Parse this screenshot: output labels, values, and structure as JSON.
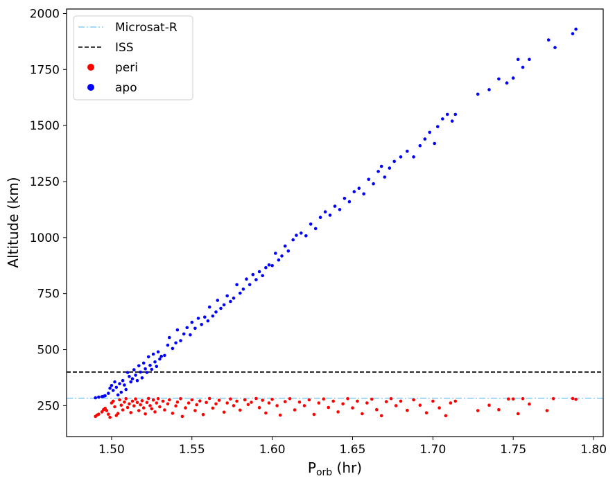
{
  "chart_data": {
    "type": "scatter",
    "title": "",
    "xlabel_main": "P",
    "xlabel_sub": "orb",
    "xlabel_unit": " (hr)",
    "ylabel": "Altitude (km)",
    "xlim": [
      1.472,
      1.806
    ],
    "ylim": [
      112,
      2020
    ],
    "xticks": [
      1.5,
      1.55,
      1.6,
      1.65,
      1.7,
      1.75,
      1.8
    ],
    "xtick_labels": [
      "1.50",
      "1.55",
      "1.60",
      "1.65",
      "1.70",
      "1.75",
      "1.80"
    ],
    "yticks": [
      250,
      500,
      750,
      1000,
      1250,
      1500,
      1750,
      2000
    ],
    "ytick_labels": [
      "250",
      "500",
      "750",
      "1000",
      "1250",
      "1500",
      "1750",
      "2000"
    ],
    "grid": false,
    "legend_position": "top-left",
    "lines": [
      {
        "name": "Microsat-R",
        "y": 283,
        "color": "#87cefa",
        "style": "dash-dot"
      },
      {
        "name": "ISS",
        "y": 400,
        "color": "#000000",
        "style": "dashed"
      }
    ],
    "series": [
      {
        "name": "peri",
        "color": "#ff0000",
        "points": [
          [
            1.49,
            202
          ],
          [
            1.491,
            208
          ],
          [
            1.492,
            212
          ],
          [
            1.494,
            222
          ],
          [
            1.495,
            232
          ],
          [
            1.496,
            238
          ],
          [
            1.497,
            228
          ],
          [
            1.498,
            212
          ],
          [
            1.499,
            198
          ],
          [
            1.5,
            262
          ],
          [
            1.501,
            270
          ],
          [
            1.502,
            245
          ],
          [
            1.503,
            206
          ],
          [
            1.504,
            215
          ],
          [
            1.505,
            276
          ],
          [
            1.506,
            252
          ],
          [
            1.507,
            231
          ],
          [
            1.508,
            266
          ],
          [
            1.509,
            281
          ],
          [
            1.51,
            242
          ],
          [
            1.511,
            258
          ],
          [
            1.512,
            219
          ],
          [
            1.513,
            270
          ],
          [
            1.514,
            249
          ],
          [
            1.515,
            280
          ],
          [
            1.516,
            264
          ],
          [
            1.517,
            228
          ],
          [
            1.518,
            254
          ],
          [
            1.519,
            272
          ],
          [
            1.52,
            240
          ],
          [
            1.521,
            213
          ],
          [
            1.522,
            264
          ],
          [
            1.523,
            282
          ],
          [
            1.524,
            250
          ],
          [
            1.525,
            236
          ],
          [
            1.526,
            275
          ],
          [
            1.527,
            222
          ],
          [
            1.528,
            262
          ],
          [
            1.529,
            281
          ],
          [
            1.53,
            245
          ],
          [
            1.532,
            270
          ],
          [
            1.533,
            231
          ],
          [
            1.535,
            258
          ],
          [
            1.536,
            276
          ],
          [
            1.538,
            216
          ],
          [
            1.54,
            249
          ],
          [
            1.541,
            266
          ],
          [
            1.543,
            281
          ],
          [
            1.544,
            202
          ],
          [
            1.546,
            240
          ],
          [
            1.548,
            262
          ],
          [
            1.55,
            276
          ],
          [
            1.552,
            228
          ],
          [
            1.553,
            254
          ],
          [
            1.555,
            271
          ],
          [
            1.557,
            210
          ],
          [
            1.559,
            264
          ],
          [
            1.561,
            282
          ],
          [
            1.563,
            239
          ],
          [
            1.565,
            258
          ],
          [
            1.567,
            274
          ],
          [
            1.57,
            221
          ],
          [
            1.572,
            262
          ],
          [
            1.574,
            280
          ],
          [
            1.576,
            250
          ],
          [
            1.578,
            270
          ],
          [
            1.58,
            230
          ],
          [
            1.583,
            276
          ],
          [
            1.585,
            255
          ],
          [
            1.587,
            265
          ],
          [
            1.59,
            282
          ],
          [
            1.592,
            241
          ],
          [
            1.594,
            274
          ],
          [
            1.596,
            217
          ],
          [
            1.598,
            262
          ],
          [
            1.6,
            278
          ],
          [
            1.603,
            250
          ],
          [
            1.605,
            208
          ],
          [
            1.608,
            268
          ],
          [
            1.611,
            281
          ],
          [
            1.614,
            231
          ],
          [
            1.617,
            266
          ],
          [
            1.62,
            250
          ],
          [
            1.623,
            276
          ],
          [
            1.626,
            211
          ],
          [
            1.629,
            262
          ],
          [
            1.632,
            280
          ],
          [
            1.635,
            242
          ],
          [
            1.638,
            270
          ],
          [
            1.641,
            222
          ],
          [
            1.644,
            258
          ],
          [
            1.647,
            281
          ],
          [
            1.65,
            240
          ],
          [
            1.653,
            270
          ],
          [
            1.656,
            214
          ],
          [
            1.659,
            262
          ],
          [
            1.662,
            279
          ],
          [
            1.665,
            232
          ],
          [
            1.668,
            205
          ],
          [
            1.671,
            268
          ],
          [
            1.674,
            281
          ],
          [
            1.677,
            250
          ],
          [
            1.68,
            270
          ],
          [
            1.684,
            229
          ],
          [
            1.688,
            276
          ],
          [
            1.692,
            252
          ],
          [
            1.696,
            218
          ],
          [
            1.7,
            270
          ],
          [
            1.704,
            240
          ],
          [
            1.708,
            205
          ],
          [
            1.711,
            262
          ],
          [
            1.714,
            270
          ],
          [
            1.728,
            228
          ],
          [
            1.735,
            252
          ],
          [
            1.741,
            232
          ],
          [
            1.747,
            280
          ],
          [
            1.75,
            280
          ],
          [
            1.753,
            214
          ],
          [
            1.756,
            281
          ],
          [
            1.76,
            257
          ],
          [
            1.771,
            228
          ],
          [
            1.775,
            281
          ],
          [
            1.787,
            282
          ],
          [
            1.789,
            278
          ]
        ]
      },
      {
        "name": "apo",
        "color": "#0000ff",
        "points": [
          [
            1.49,
            285
          ],
          [
            1.492,
            288
          ],
          [
            1.494,
            290
          ],
          [
            1.495,
            292
          ],
          [
            1.496,
            294
          ],
          [
            1.498,
            305
          ],
          [
            1.499,
            328
          ],
          [
            1.5,
            340
          ],
          [
            1.501,
            318
          ],
          [
            1.502,
            356
          ],
          [
            1.503,
            332
          ],
          [
            1.504,
            298
          ],
          [
            1.505,
            348
          ],
          [
            1.506,
            310
          ],
          [
            1.507,
            362
          ],
          [
            1.508,
            342
          ],
          [
            1.509,
            322
          ],
          [
            1.51,
            398
          ],
          [
            1.511,
            380
          ],
          [
            1.512,
            356
          ],
          [
            1.513,
            370
          ],
          [
            1.514,
            410
          ],
          [
            1.515,
            386
          ],
          [
            1.516,
            362
          ],
          [
            1.517,
            428
          ],
          [
            1.518,
            400
          ],
          [
            1.519,
            374
          ],
          [
            1.52,
            440
          ],
          [
            1.521,
            414
          ],
          [
            1.522,
            398
          ],
          [
            1.523,
            468
          ],
          [
            1.524,
            430
          ],
          [
            1.525,
            412
          ],
          [
            1.526,
            480
          ],
          [
            1.527,
            445
          ],
          [
            1.528,
            425
          ],
          [
            1.529,
            490
          ],
          [
            1.53,
            458
          ],
          [
            1.531,
            470
          ],
          [
            1.533,
            474
          ],
          [
            1.535,
            520
          ],
          [
            1.536,
            554
          ],
          [
            1.538,
            505
          ],
          [
            1.54,
            530
          ],
          [
            1.541,
            588
          ],
          [
            1.543,
            540
          ],
          [
            1.545,
            570
          ],
          [
            1.547,
            598
          ],
          [
            1.549,
            566
          ],
          [
            1.55,
            622
          ],
          [
            1.552,
            595
          ],
          [
            1.554,
            640
          ],
          [
            1.556,
            612
          ],
          [
            1.558,
            645
          ],
          [
            1.56,
            628
          ],
          [
            1.561,
            690
          ],
          [
            1.563,
            650
          ],
          [
            1.565,
            668
          ],
          [
            1.566,
            720
          ],
          [
            1.568,
            684
          ],
          [
            1.57,
            700
          ],
          [
            1.572,
            740
          ],
          [
            1.574,
            715
          ],
          [
            1.576,
            730
          ],
          [
            1.578,
            790
          ],
          [
            1.58,
            752
          ],
          [
            1.582,
            770
          ],
          [
            1.584,
            815
          ],
          [
            1.586,
            790
          ],
          [
            1.588,
            835
          ],
          [
            1.59,
            812
          ],
          [
            1.592,
            848
          ],
          [
            1.594,
            830
          ],
          [
            1.596,
            866
          ],
          [
            1.598,
            878
          ],
          [
            1.6,
            875
          ],
          [
            1.602,
            930
          ],
          [
            1.604,
            900
          ],
          [
            1.606,
            918
          ],
          [
            1.608,
            962
          ],
          [
            1.61,
            940
          ],
          [
            1.613,
            990
          ],
          [
            1.615,
            1010
          ],
          [
            1.618,
            1020
          ],
          [
            1.621,
            1008
          ],
          [
            1.624,
            1060
          ],
          [
            1.627,
            1040
          ],
          [
            1.63,
            1090
          ],
          [
            1.633,
            1115
          ],
          [
            1.636,
            1100
          ],
          [
            1.639,
            1140
          ],
          [
            1.642,
            1125
          ],
          [
            1.645,
            1175
          ],
          [
            1.648,
            1160
          ],
          [
            1.651,
            1205
          ],
          [
            1.654,
            1220
          ],
          [
            1.657,
            1195
          ],
          [
            1.66,
            1260
          ],
          [
            1.663,
            1240
          ],
          [
            1.666,
            1295
          ],
          [
            1.668,
            1318
          ],
          [
            1.67,
            1270
          ],
          [
            1.673,
            1310
          ],
          [
            1.676,
            1340
          ],
          [
            1.68,
            1360
          ],
          [
            1.684,
            1385
          ],
          [
            1.688,
            1360
          ],
          [
            1.692,
            1410
          ],
          [
            1.695,
            1440
          ],
          [
            1.698,
            1470
          ],
          [
            1.701,
            1420
          ],
          [
            1.703,
            1495
          ],
          [
            1.706,
            1530
          ],
          [
            1.709,
            1550
          ],
          [
            1.712,
            1520
          ],
          [
            1.714,
            1550
          ],
          [
            1.728,
            1640
          ],
          [
            1.735,
            1660
          ],
          [
            1.741,
            1708
          ],
          [
            1.746,
            1690
          ],
          [
            1.75,
            1712
          ],
          [
            1.753,
            1795
          ],
          [
            1.756,
            1760
          ],
          [
            1.76,
            1795
          ],
          [
            1.772,
            1882
          ],
          [
            1.776,
            1848
          ],
          [
            1.787,
            1910
          ],
          [
            1.789,
            1930
          ]
        ]
      }
    ]
  }
}
